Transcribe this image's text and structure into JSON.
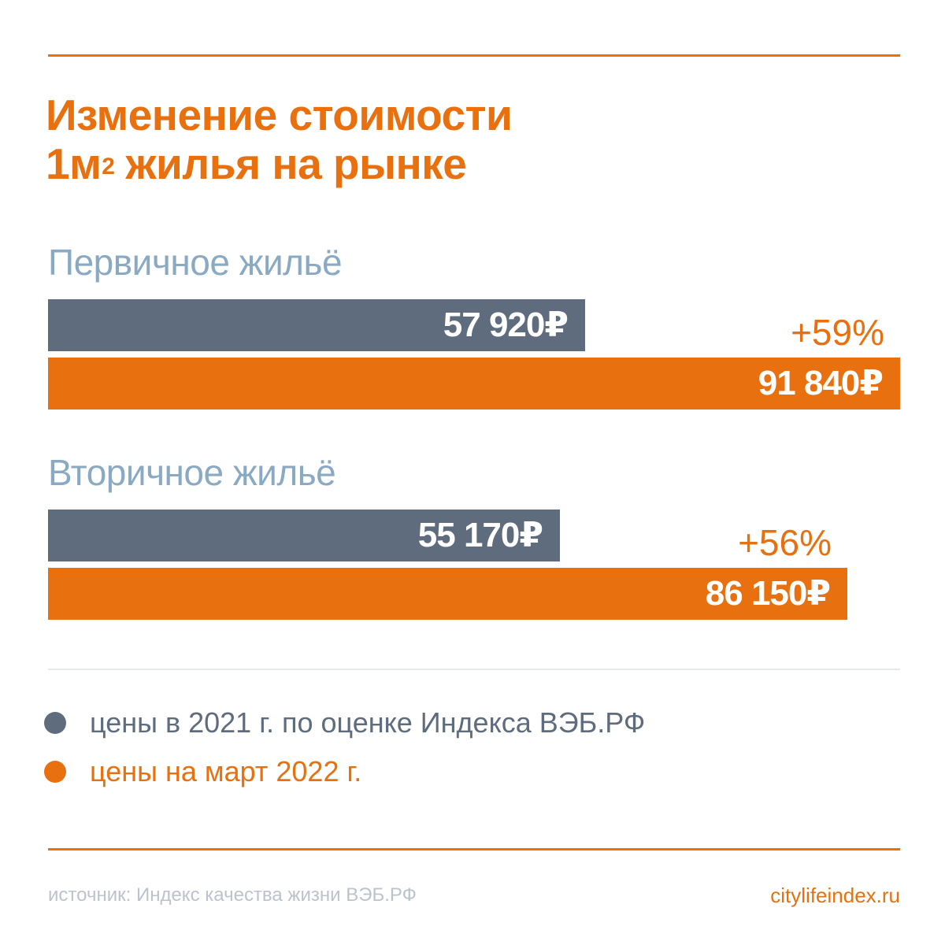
{
  "title": {
    "line1": "Изменение стоимости",
    "line2_pre": "1м",
    "line2_sup": "2",
    "line2_post": "жилья на рынке"
  },
  "colors": {
    "accent": "#e8700f",
    "grey_bar": "#5f6c7d",
    "group_label": "#8aa9c3",
    "legend_text": "#5f6c7d",
    "source_text": "#bcc3cc"
  },
  "chart_data": {
    "type": "bar",
    "orientation": "horizontal",
    "title": "Изменение стоимости 1м² жилья на рынке",
    "categories": [
      "Первичное жильё",
      "Вторичное жильё"
    ],
    "series": [
      {
        "name": "цены в 2021 г. по оценке Индекса ВЭБ.РФ",
        "values": [
          57920,
          55170
        ],
        "labels": [
          "57 920₽",
          "55 170₽"
        ],
        "color": "#5f6c7d"
      },
      {
        "name": "цены на март 2022 г.",
        "values": [
          91840,
          86150
        ],
        "labels": [
          "91 840₽",
          "86 150₽"
        ],
        "color": "#e8700f"
      }
    ],
    "annotations": [
      "+59%",
      "+56%"
    ],
    "grid": false,
    "legend_position": "bottom"
  },
  "footer": {
    "source": "источник: Индекс качества жизни ВЭБ.РФ",
    "site": "citylifeindex.ru"
  }
}
